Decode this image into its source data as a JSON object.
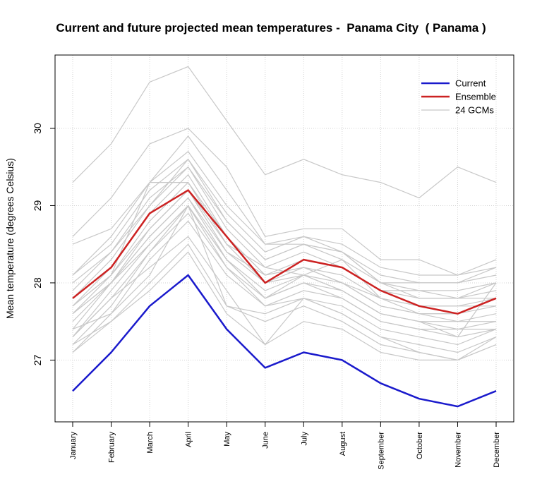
{
  "chart_data": {
    "type": "line",
    "title": "Current and future projected mean temperatures -  Panama City  ( Panama )",
    "xlabel": "",
    "ylabel": "Mean temperature (degrees Celsius)",
    "categories": [
      "January",
      "February",
      "March",
      "April",
      "May",
      "June",
      "July",
      "August",
      "September",
      "October",
      "November",
      "December"
    ],
    "ylim": [
      26.2,
      30.95
    ],
    "yticks": [
      27,
      28,
      29,
      30
    ],
    "grid": true,
    "legend_position": "top-right",
    "colors": {
      "current": "#1a1acc",
      "ensemble": "#cc2222",
      "gcm": "#c8c8c8"
    },
    "series": [
      {
        "name": "Current",
        "role": "current",
        "values": [
          26.6,
          27.1,
          27.7,
          28.1,
          27.4,
          26.9,
          27.1,
          27.0,
          26.7,
          26.5,
          26.4,
          26.6
        ]
      },
      {
        "name": "Ensemble",
        "role": "ensemble",
        "values": [
          27.8,
          28.2,
          28.9,
          29.2,
          28.6,
          28.0,
          28.3,
          28.2,
          27.9,
          27.7,
          27.6,
          27.8
        ]
      },
      {
        "name": "24 GCMs",
        "role": "gcm-group",
        "members": [
          [
            29.3,
            29.8,
            30.6,
            30.8,
            30.1,
            29.4,
            29.6,
            29.4,
            29.3,
            29.1,
            29.5,
            29.3
          ],
          [
            28.6,
            29.1,
            29.8,
            30.0,
            29.5,
            28.6,
            28.7,
            28.7,
            28.3,
            28.3,
            28.1,
            28.3
          ],
          [
            28.5,
            28.7,
            29.3,
            29.9,
            29.2,
            28.5,
            28.6,
            28.5,
            28.2,
            28.1,
            28.1,
            28.2
          ],
          [
            28.1,
            28.6,
            29.3,
            29.7,
            29.0,
            28.5,
            28.5,
            28.4,
            28.1,
            28.0,
            28.0,
            28.2
          ],
          [
            28.1,
            28.5,
            29.2,
            29.6,
            28.9,
            28.4,
            28.6,
            28.4,
            28.0,
            28.0,
            28.0,
            28.1
          ],
          [
            27.9,
            28.4,
            29.0,
            29.6,
            28.8,
            28.3,
            28.5,
            28.3,
            28.0,
            27.9,
            27.9,
            28.0
          ],
          [
            27.8,
            28.3,
            29.0,
            29.5,
            28.7,
            28.2,
            28.4,
            28.2,
            27.9,
            27.9,
            27.8,
            27.9
          ],
          [
            27.7,
            28.2,
            28.9,
            29.4,
            28.6,
            28.1,
            28.3,
            28.2,
            27.9,
            27.8,
            27.8,
            27.8
          ],
          [
            27.6,
            28.1,
            28.8,
            29.3,
            28.6,
            28.1,
            28.2,
            28.1,
            27.8,
            27.7,
            27.7,
            27.7
          ],
          [
            27.5,
            28.0,
            28.7,
            29.2,
            28.5,
            28.0,
            28.2,
            28.0,
            27.8,
            27.6,
            27.6,
            27.7
          ],
          [
            27.4,
            28.0,
            28.6,
            29.1,
            28.4,
            28.0,
            28.1,
            28.0,
            27.7,
            27.6,
            27.5,
            27.6
          ],
          [
            27.3,
            27.9,
            28.5,
            29.0,
            28.3,
            27.9,
            28.1,
            27.9,
            27.6,
            27.5,
            27.5,
            27.5
          ],
          [
            27.3,
            27.8,
            28.4,
            29.0,
            28.3,
            27.8,
            28.0,
            27.9,
            27.6,
            27.5,
            27.4,
            27.5
          ],
          [
            27.2,
            27.7,
            28.4,
            28.9,
            28.2,
            27.8,
            28.0,
            27.8,
            27.5,
            27.4,
            27.4,
            27.4
          ],
          [
            27.1,
            27.6,
            28.3,
            28.8,
            28.1,
            27.7,
            27.9,
            27.8,
            27.5,
            27.4,
            27.3,
            27.4
          ],
          [
            27.7,
            28.1,
            29.3,
            29.3,
            28.5,
            28.2,
            28.1,
            28.3,
            27.8,
            27.7,
            27.7,
            27.8
          ],
          [
            27.4,
            27.6,
            28.1,
            29.0,
            27.7,
            27.6,
            27.8,
            27.6,
            27.3,
            27.1,
            27.0,
            27.3
          ],
          [
            27.2,
            27.5,
            28.0,
            28.5,
            27.7,
            27.5,
            27.7,
            27.5,
            27.2,
            27.1,
            27.0,
            27.2
          ],
          [
            27.1,
            27.5,
            27.9,
            28.4,
            27.6,
            27.2,
            27.5,
            27.4,
            27.1,
            27.0,
            27.0,
            27.2
          ],
          [
            27.3,
            27.8,
            28.2,
            28.6,
            27.9,
            27.2,
            27.8,
            27.6,
            27.3,
            27.2,
            27.1,
            27.3
          ],
          [
            27.6,
            28.0,
            28.6,
            29.1,
            28.3,
            27.8,
            28.1,
            27.9,
            27.6,
            27.5,
            27.3,
            28.0
          ],
          [
            27.7,
            28.1,
            28.7,
            29.2,
            28.4,
            28.1,
            28.2,
            28.0,
            27.7,
            27.6,
            27.6,
            27.8
          ],
          [
            28.0,
            28.4,
            29.1,
            29.5,
            28.8,
            28.3,
            28.5,
            28.4,
            28.0,
            27.8,
            27.8,
            28.0
          ],
          [
            27.6,
            28.0,
            28.5,
            29.0,
            28.2,
            27.7,
            27.8,
            27.7,
            27.4,
            27.3,
            27.2,
            27.4
          ]
        ]
      }
    ]
  }
}
